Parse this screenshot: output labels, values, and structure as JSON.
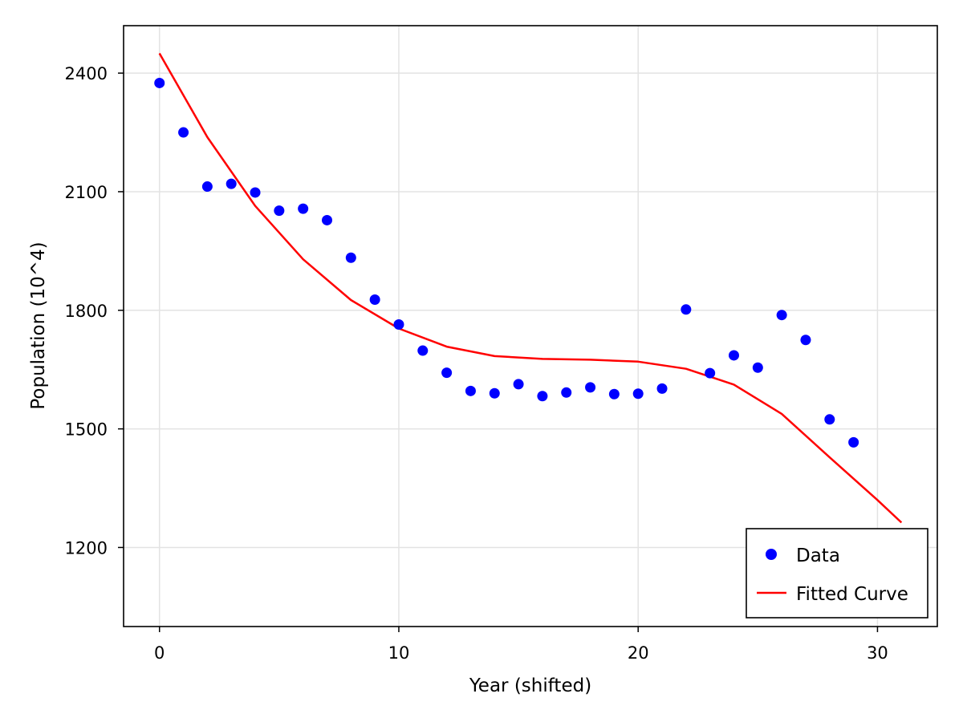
{
  "chart_data": {
    "type": "scatter",
    "title": "",
    "xlabel": "Year (shifted)",
    "ylabel": "Population (10^4)",
    "xlim": [
      -1.5,
      32.5
    ],
    "ylim": [
      1000,
      2520
    ],
    "x_ticks": [
      0,
      10,
      20,
      30
    ],
    "y_ticks": [
      1200,
      1500,
      1800,
      2100,
      2400
    ],
    "grid": true,
    "legend_position": "bottom-right",
    "series": [
      {
        "name": "Data",
        "kind": "scatter",
        "color": "#0000ff",
        "x": [
          0,
          1,
          2,
          3,
          4,
          5,
          6,
          7,
          8,
          9,
          10,
          11,
          12,
          13,
          14,
          15,
          16,
          17,
          18,
          19,
          20,
          21,
          22,
          23,
          24,
          25,
          26,
          27,
          28,
          29
        ],
        "y": [
          2375,
          2250,
          2113,
          2120,
          2098,
          2052,
          2057,
          2028,
          1933,
          1827,
          1764,
          1698,
          1642,
          1596,
          1590,
          1613,
          1583,
          1592,
          1605,
          1588,
          1589,
          1602,
          1802,
          1641,
          1686,
          1655,
          1788,
          1725,
          1524,
          1466
        ]
      },
      {
        "name": "Fitted Curve",
        "kind": "line",
        "color": "#ff0000",
        "x": [
          0,
          2,
          4,
          6,
          8,
          10,
          12,
          14,
          16,
          18,
          20,
          22,
          24,
          26,
          28,
          30,
          31
        ],
        "y": [
          2450,
          2238,
          2064,
          1929,
          1826,
          1754,
          1708,
          1684,
          1677,
          1675,
          1670,
          1652,
          1612,
          1538,
          1428,
          1320,
          1263
        ]
      }
    ]
  }
}
